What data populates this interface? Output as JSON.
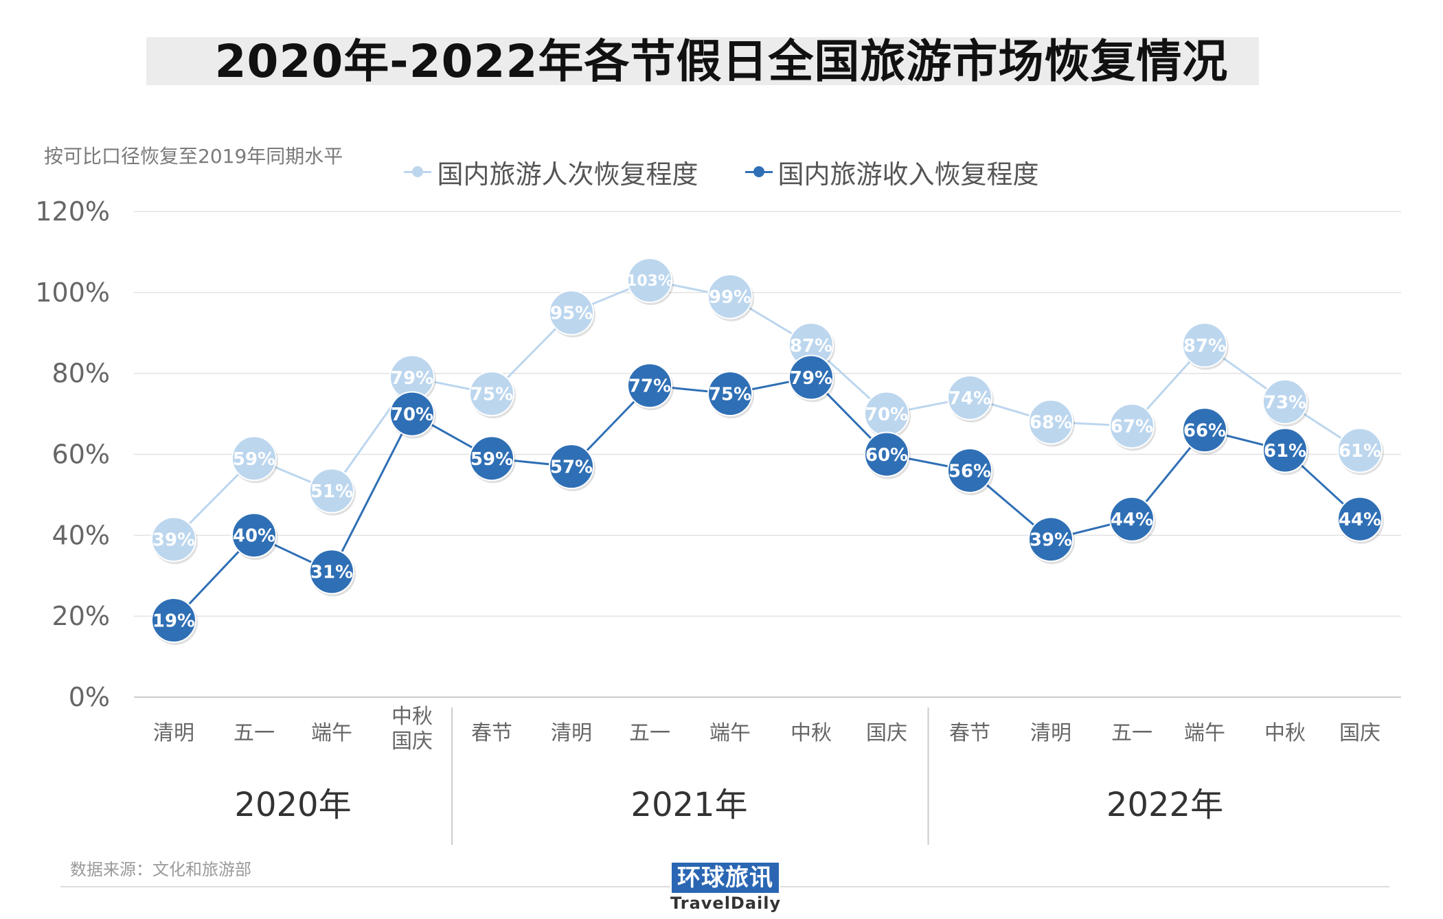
{
  "title": "2020年-2022年各节假日全国旅游市场恢复情况",
  "subtitle": "按可比口径恢复至2019年同期水平",
  "source": "数据来源：文化和旅游部",
  "logo": {
    "cn": "环球旅讯",
    "en": "TravelDaily"
  },
  "colors": {
    "light": "#bcd6ee",
    "dark": "#2f6fb5",
    "grid": "#e2e2e2",
    "axis": "#cccccc",
    "tick": "#666666"
  },
  "chart_data": {
    "type": "line",
    "ylim": [
      0,
      120
    ],
    "yticks": [
      "0%",
      "20%",
      "40%",
      "60%",
      "80%",
      "100%",
      "120%"
    ],
    "categories": [
      [
        "清明"
      ],
      [
        "五一"
      ],
      [
        "端午"
      ],
      [
        "中秋",
        "国庆"
      ],
      [
        "春节"
      ],
      [
        "清明"
      ],
      [
        "五一"
      ],
      [
        "端午"
      ],
      [
        "中秋"
      ],
      [
        "国庆"
      ],
      [
        "春节"
      ],
      [
        "清明"
      ],
      [
        "五一"
      ],
      [
        "端午"
      ],
      [
        "中秋"
      ],
      [
        "国庆"
      ]
    ],
    "groups": [
      {
        "label": "2020年",
        "start": 0,
        "end": 3
      },
      {
        "label": "2021年",
        "start": 4,
        "end": 9
      },
      {
        "label": "2022年",
        "start": 10,
        "end": 15
      }
    ],
    "legend_position": "top-center",
    "grid": true,
    "series": [
      {
        "name": "国内旅游人次恢复程度",
        "values": [
          39,
          59,
          51,
          79,
          75,
          95,
          103,
          99,
          87,
          70,
          74,
          68,
          67,
          87,
          73,
          61
        ]
      },
      {
        "name": "国内旅游收入恢复程度",
        "values": [
          19,
          40,
          31,
          70,
          59,
          57,
          77,
          75,
          79,
          60,
          56,
          39,
          44,
          66,
          61,
          44
        ]
      }
    ]
  }
}
